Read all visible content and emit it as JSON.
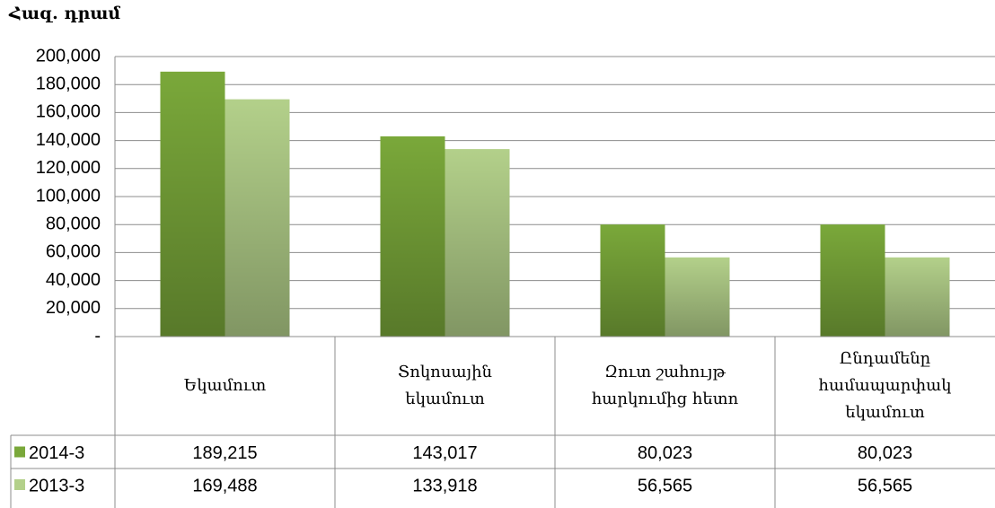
{
  "chart_data": {
    "type": "bar",
    "title": "Հազ. դրամ",
    "categories": [
      "Եկամուտ",
      "Տոկոսային եկամուտ",
      "Զուտ շահույթ հարկումից հետո",
      "Ընդամենը համապարփակ եկամուտ"
    ],
    "series": [
      {
        "name": "2014-3",
        "color": "#7aa83a",
        "values": [
          189215,
          143017,
          80023,
          80023
        ],
        "value_labels": [
          "189,215",
          "143,017",
          "80,023",
          "80,023"
        ]
      },
      {
        "name": "2013-3",
        "color": "#b3d08a",
        "values": [
          169488,
          133918,
          56565,
          56565
        ],
        "value_labels": [
          "169,488",
          "133,918",
          "56,565",
          "56,565"
        ]
      }
    ],
    "ylim": [
      0,
      200000
    ],
    "yticks": [
      {
        "value": 0,
        "label": "-"
      },
      {
        "value": 20000,
        "label": "20,000"
      },
      {
        "value": 40000,
        "label": "40,000"
      },
      {
        "value": 60000,
        "label": "60,000"
      },
      {
        "value": 80000,
        "label": "80,000"
      },
      {
        "value": 100000,
        "label": "100,000"
      },
      {
        "value": 120000,
        "label": "120,000"
      },
      {
        "value": 140000,
        "label": "140,000"
      },
      {
        "value": 160000,
        "label": "160,000"
      },
      {
        "value": 180000,
        "label": "180,000"
      },
      {
        "value": 200000,
        "label": "200,000"
      }
    ],
    "grid": true
  }
}
